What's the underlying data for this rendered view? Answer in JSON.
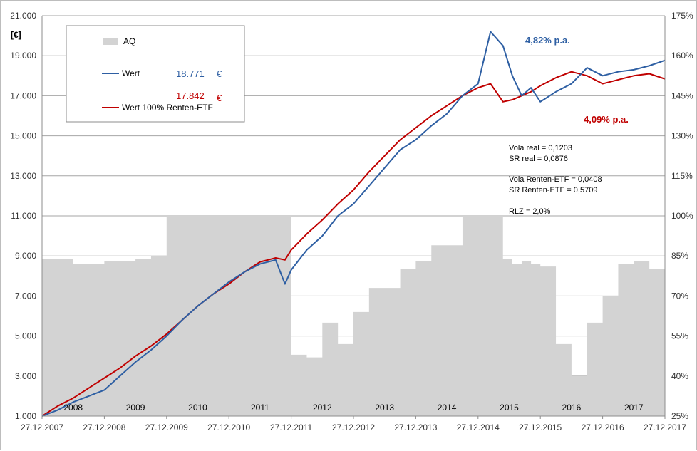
{
  "chart_data": {
    "type": "line",
    "ylabel": "[€]",
    "ylim": [
      1000,
      21000
    ],
    "y2lim": [
      25,
      175
    ],
    "y_ticks": [
      "1.000",
      "3.000",
      "5.000",
      "7.000",
      "9.000",
      "11.000",
      "13.000",
      "15.000",
      "17.000",
      "19.000",
      "21.000"
    ],
    "y2_ticks": [
      "25%",
      "40%",
      "55%",
      "70%",
      "85%",
      "100%",
      "115%",
      "130%",
      "145%",
      "160%",
      "175%"
    ],
    "x_ticks": [
      "27.12.2007",
      "27.12.2008",
      "27.12.2009",
      "27.12.2010",
      "27.12.2011",
      "27.12.2012",
      "27.12.2013",
      "27.12.2014",
      "27.12.2015",
      "27.12.2016",
      "27.12.2017"
    ],
    "year_labels": [
      "2008",
      "2009",
      "2010",
      "2011",
      "2012",
      "2013",
      "2014",
      "2015",
      "2016",
      "2017"
    ],
    "x_years": [
      0,
      0.25,
      0.5,
      0.75,
      1,
      1.25,
      1.5,
      1.75,
      2,
      2.25,
      2.5,
      2.75,
      3,
      3.25,
      3.5,
      3.75,
      3.9,
      4,
      4.25,
      4.5,
      4.75,
      5,
      5.25,
      5.5,
      5.75,
      6,
      6.25,
      6.5,
      6.75,
      7,
      7.2,
      7.4,
      7.55,
      7.7,
      7.85,
      8,
      8.25,
      8.5,
      8.75,
      9,
      9.25,
      9.5,
      9.75,
      10
    ],
    "series": [
      {
        "name": "AQ",
        "color": "#d3d3d3",
        "axis": "right",
        "values": [
          84,
          84,
          82,
          82,
          83,
          83,
          84,
          85,
          100,
          100,
          100,
          100,
          100,
          100,
          100,
          100,
          100,
          48,
          47,
          60,
          52,
          64,
          73,
          73,
          80,
          83,
          89,
          89,
          100,
          100,
          100,
          84,
          82,
          83,
          82,
          81,
          52,
          40,
          60,
          70,
          82,
          83,
          80,
          85
        ]
      },
      {
        "name": "Wert",
        "color": "#2e5fa3",
        "axis": "left",
        "values": [
          1000,
          1300,
          1700,
          2000,
          2300,
          3000,
          3700,
          4300,
          5000,
          5800,
          6500,
          7100,
          7700,
          8200,
          8600,
          8800,
          7600,
          8300,
          9300,
          10000,
          11000,
          11600,
          12500,
          13400,
          14300,
          14800,
          15500,
          16100,
          17000,
          17600,
          20200,
          19500,
          18000,
          17000,
          17400,
          16700,
          17200,
          17600,
          18400,
          18000,
          18200,
          18300,
          18500,
          18771
        ]
      },
      {
        "name": "Wert 100% Renten-ETF",
        "color": "#c00000",
        "axis": "left",
        "values": [
          1000,
          1500,
          1900,
          2400,
          2900,
          3400,
          4000,
          4500,
          5100,
          5800,
          6500,
          7100,
          7600,
          8200,
          8700,
          8900,
          8800,
          9300,
          10100,
          10800,
          11600,
          12300,
          13200,
          14000,
          14800,
          15400,
          16000,
          16500,
          17000,
          17400,
          17600,
          16700,
          16800,
          17000,
          17200,
          17500,
          17900,
          18200,
          18000,
          17600,
          17800,
          18000,
          18100,
          17842
        ]
      }
    ],
    "legend": {
      "aq_label": "AQ",
      "wert_label": "Wert",
      "renten_label": "Wert 100% Renten-ETF",
      "wert_value": "18.771",
      "renten_value": "17.842",
      "currency": "€"
    },
    "annotations": {
      "wert_pa": "4,82%  p.a.",
      "renten_pa": "4,09%  p.a.",
      "vola_real": "Vola real = 0,1203",
      "sr_real": "SR  real = 0,0876",
      "vola_renten": "Vola Renten-ETF = 0,0408",
      "sr_renten": "SR Renten-ETF = 0,5709",
      "rlz": "RLZ = 2,0%"
    }
  }
}
